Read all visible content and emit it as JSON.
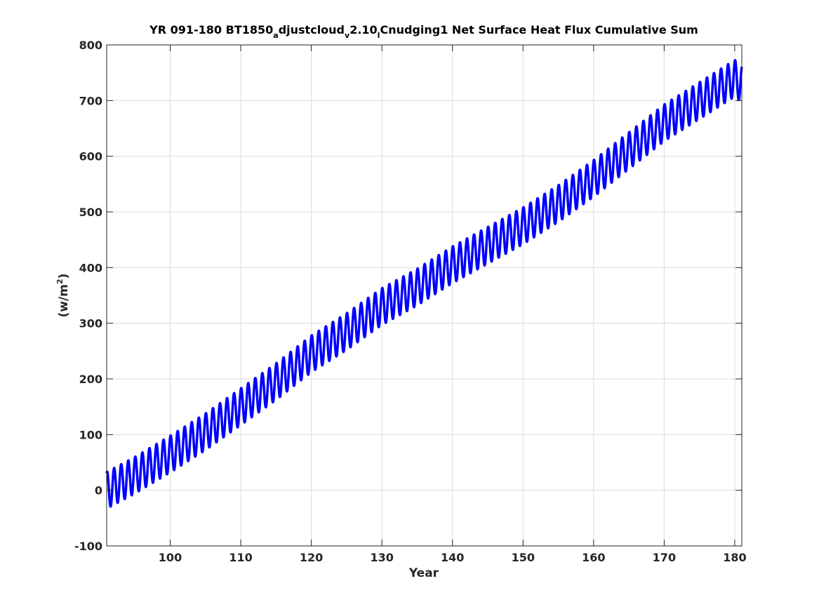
{
  "chart_data": {
    "type": "line",
    "title": {
      "p1": "YR 091-180 BT1850",
      "s1": "a",
      "p2": "djustcloud",
      "s2": "v",
      "p3": "2.10",
      "s3": "l",
      "p4": "Cnudging1 Net Surface Heat Flux  Cumulative Sum"
    },
    "xlabel": "Year",
    "ylabel": {
      "main": "(w/m",
      "sup": "2",
      "close": ")"
    },
    "xlim": [
      91,
      181
    ],
    "ylim": [
      -100,
      800
    ],
    "xticks": [
      100,
      110,
      120,
      130,
      140,
      150,
      160,
      170,
      180
    ],
    "xtick_labels": [
      "100",
      "110",
      "120",
      "130",
      "140",
      "150",
      "160",
      "170",
      "180"
    ],
    "yticks": [
      -100,
      0,
      100,
      200,
      300,
      400,
      500,
      600,
      700,
      800
    ],
    "ytick_labels": [
      "-100",
      "0",
      "100",
      "200",
      "300",
      "400",
      "500",
      "600",
      "700",
      "800"
    ],
    "grid": true,
    "line_color": "#0000ff",
    "series": [
      {
        "start_year": 91,
        "end_year": 181,
        "start_value": 0,
        "end_value": 730,
        "seasonal_amplitude": 33,
        "oscillations_per_year": 1,
        "annual_means": [
          [
            91,
            0
          ],
          [
            95,
            27
          ],
          [
            100,
            65
          ],
          [
            105,
            105
          ],
          [
            110,
            150
          ],
          [
            115,
            195
          ],
          [
            120,
            245
          ],
          [
            125,
            285
          ],
          [
            130,
            330
          ],
          [
            135,
            365
          ],
          [
            140,
            405
          ],
          [
            145,
            440
          ],
          [
            150,
            475
          ],
          [
            155,
            515
          ],
          [
            160,
            560
          ],
          [
            165,
            610
          ],
          [
            170,
            660
          ],
          [
            175,
            700
          ],
          [
            180,
            740
          ],
          [
            181,
            730
          ]
        ]
      }
    ]
  }
}
